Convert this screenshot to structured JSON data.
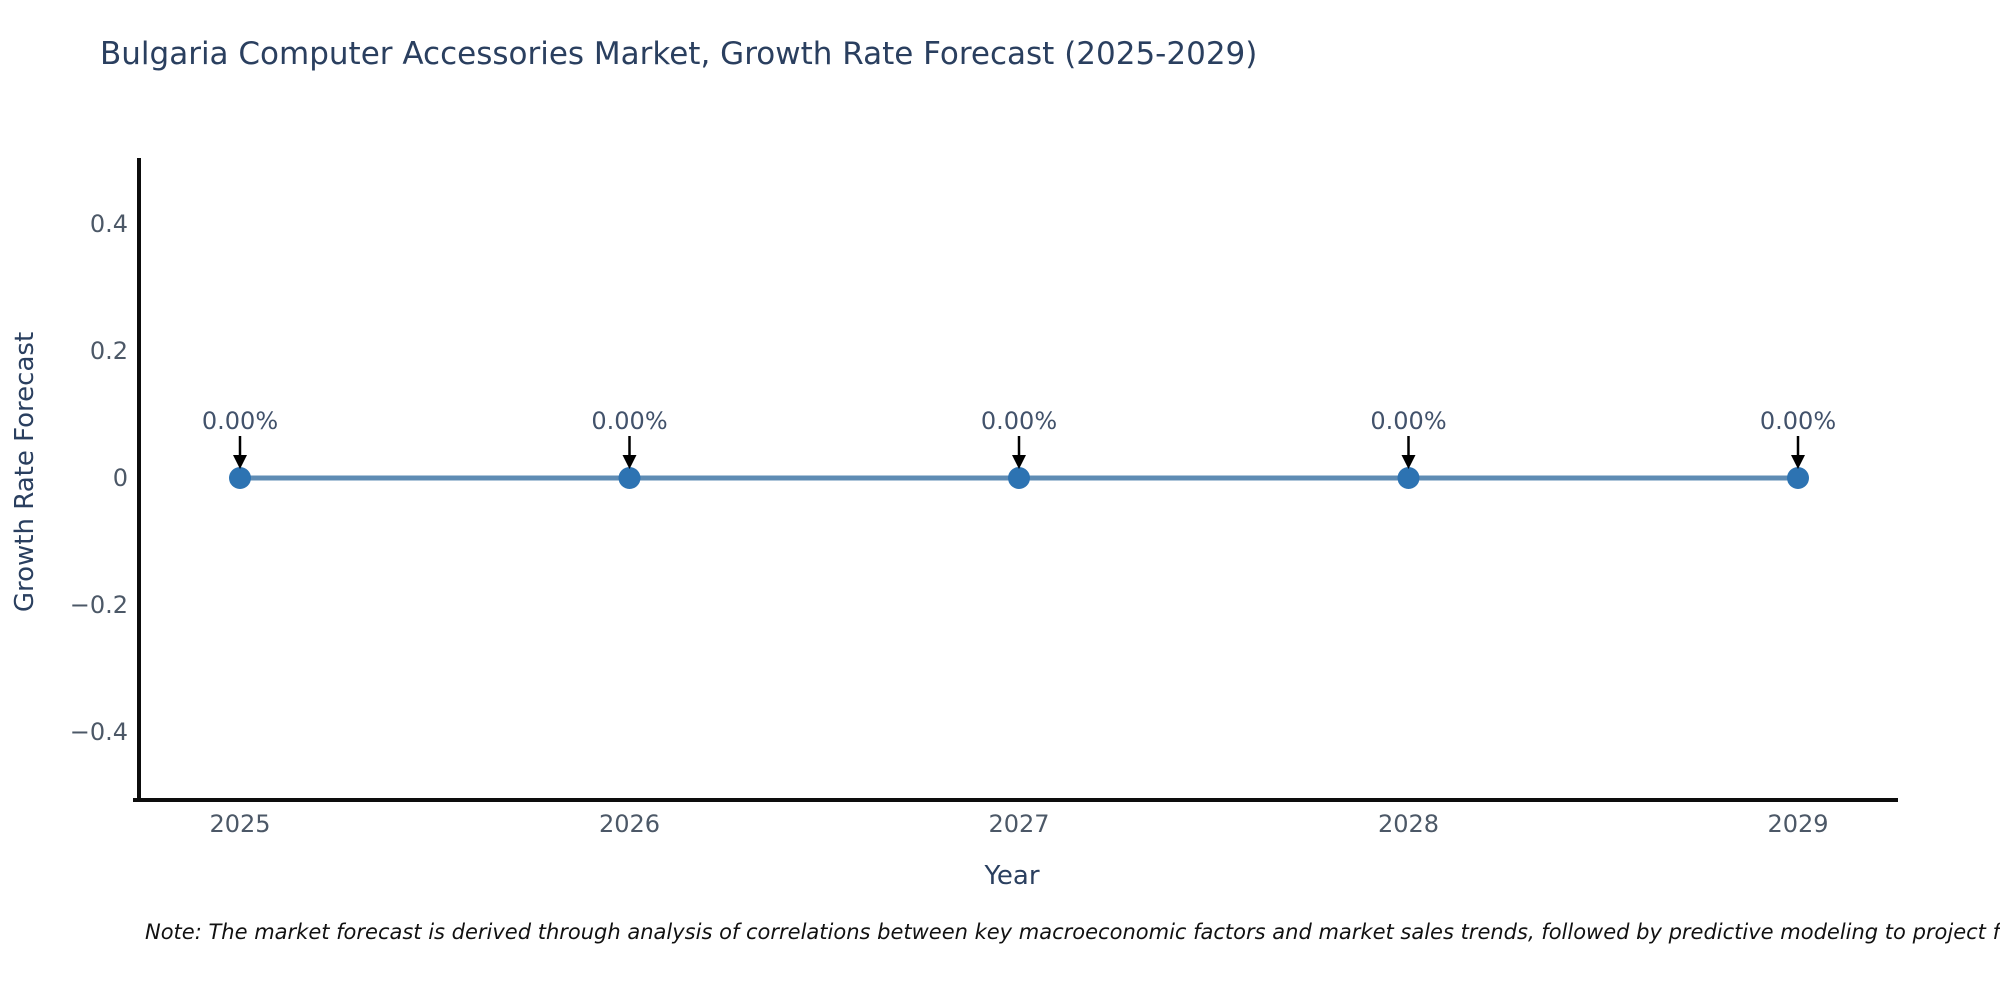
{
  "title": "Bulgaria Computer Accessories Market, Growth Rate Forecast (2025-2029)",
  "note": "Note: The market forecast is derived through analysis of correlations between key macroeconomic factors and market sales trends, followed by predictive modeling to project future sa",
  "chart_data": {
    "type": "line",
    "title": "Bulgaria Computer Accessories Market, Growth Rate Forecast (2025-2029)",
    "xlabel": "Year",
    "ylabel": "Growth Rate Forecast",
    "x": [
      2025,
      2026,
      2027,
      2028,
      2029
    ],
    "xtick_labels": [
      "2025",
      "2026",
      "2027",
      "2028",
      "2029"
    ],
    "series": [
      {
        "name": "Growth Rate Forecast",
        "values": [
          0,
          0,
          0,
          0,
          0
        ]
      }
    ],
    "point_labels": [
      "0.00%",
      "0.00%",
      "0.00%",
      "0.00%",
      "0.00%"
    ],
    "yticks": [
      0.4,
      0.2,
      0,
      -0.2,
      -0.4
    ],
    "ytick_labels": [
      "0.4",
      "0.2",
      "0",
      "−0.2",
      "−0.4"
    ],
    "ylim": [
      -0.5,
      0.5
    ],
    "xlim": [
      2024.73,
      2029.26
    ],
    "grid": false,
    "legend": false,
    "annotation_arrows": "down-arrow to each data point",
    "colors": {
      "line": "#5f8cb4",
      "marker": "#2d73b2",
      "arrow": "#000000",
      "axis_line": "#0d0d0d",
      "tick_text": "#4c5867",
      "label_text": "#2a3f5f"
    }
  }
}
